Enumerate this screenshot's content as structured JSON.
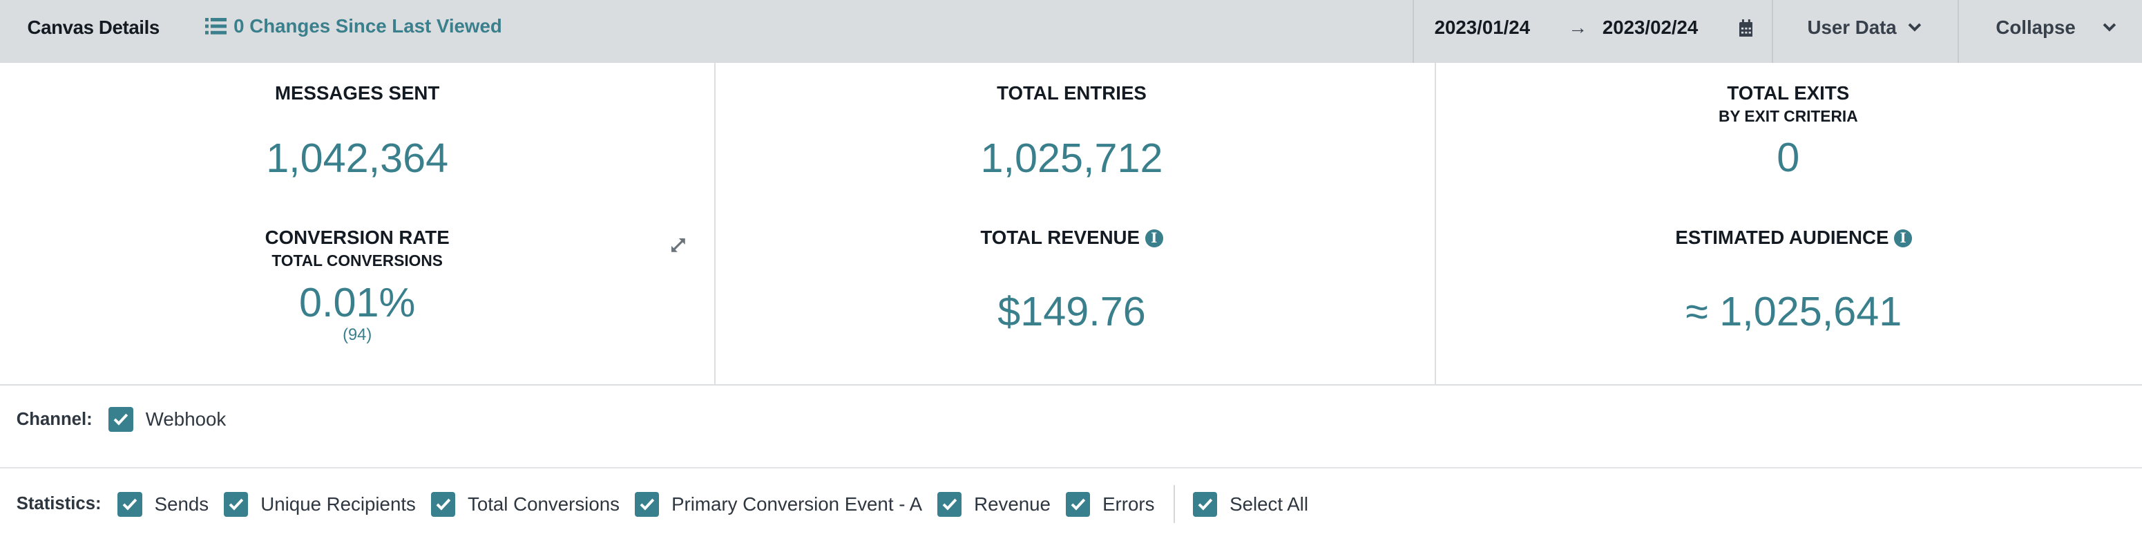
{
  "header": {
    "title": "Canvas Details",
    "changes_label": "0 Changes Since Last Viewed",
    "date_start": "2023/01/24",
    "date_arrow": "→",
    "date_end": "2023/02/24",
    "user_data_label": "User Data",
    "collapse_label": "Collapse"
  },
  "stats": {
    "messages_sent": {
      "label": "MESSAGES SENT",
      "value": "1,042,364"
    },
    "total_entries": {
      "label": "TOTAL ENTRIES",
      "value": "1,025,712"
    },
    "total_exits": {
      "label": "TOTAL EXITS",
      "sublabel": "BY EXIT CRITERIA",
      "value": "0"
    },
    "conversion_rate": {
      "label": "CONVERSION RATE",
      "sublabel": "TOTAL CONVERSIONS",
      "value": "0.01%",
      "count": "(94)"
    },
    "total_revenue": {
      "label": "TOTAL REVENUE",
      "value": "$149.76"
    },
    "estimated_audience": {
      "label": "ESTIMATED AUDIENCE",
      "value": "≈ 1,025,641"
    }
  },
  "channel": {
    "label": "Channel:",
    "items": [
      {
        "label": "Webhook",
        "checked": true
      }
    ]
  },
  "statistics": {
    "label": "Statistics:",
    "items": [
      {
        "label": "Sends",
        "checked": true
      },
      {
        "label": "Unique Recipients",
        "checked": true
      },
      {
        "label": "Total Conversions",
        "checked": true
      },
      {
        "label": "Primary Conversion Event - A",
        "checked": true
      },
      {
        "label": "Revenue",
        "checked": true
      },
      {
        "label": "Errors",
        "checked": true
      }
    ],
    "select_all": {
      "label": "Select All",
      "checked": true
    }
  },
  "colors": {
    "accent": "#3a7f8c",
    "header_bg": "#d9dde0",
    "checkbox": "#38808e"
  }
}
